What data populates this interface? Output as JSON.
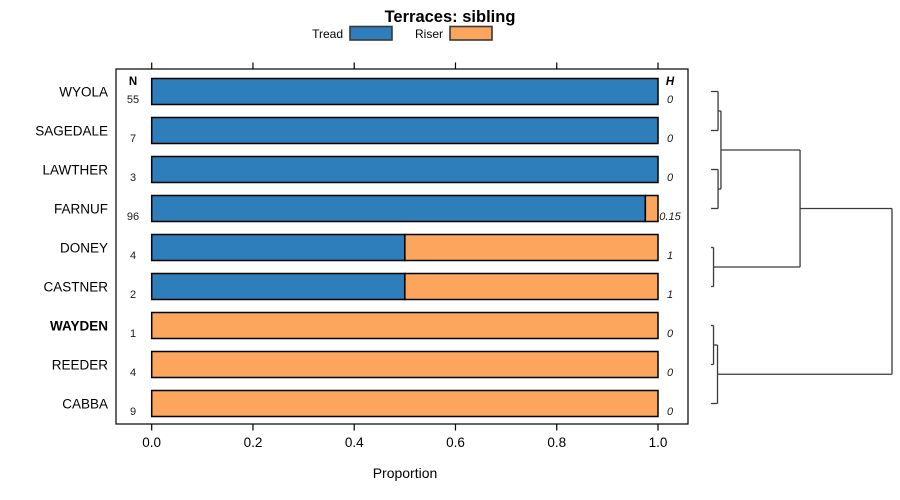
{
  "title": "Terraces: sibling",
  "legend": {
    "items": [
      {
        "label": "Tread",
        "color": "#2E7EBC"
      },
      {
        "label": "Riser",
        "color": "#FCA55D"
      }
    ]
  },
  "columns": {
    "n_header": "N",
    "h_header": "H"
  },
  "chart_data": {
    "type": "bar",
    "orientation": "horizontal-stacked",
    "title": "Terraces: sibling",
    "xlabel": "Proportion",
    "xlim": [
      0,
      1
    ],
    "x_ticks": [
      "0.0",
      "0.2",
      "0.4",
      "0.6",
      "0.8",
      "1.0"
    ],
    "grid": false,
    "legend_position": "top",
    "categories": [
      "WYOLA",
      "SAGEDALE",
      "LAWTHER",
      "FARNUF",
      "DONEY",
      "CASTNER",
      "WAYDEN",
      "REEDER",
      "CABBA"
    ],
    "bold_categories": [
      "WAYDEN"
    ],
    "series": [
      {
        "name": "Tread",
        "color": "#2E7EBC",
        "values": [
          1,
          1,
          1,
          0.975,
          0.5,
          0.5,
          0,
          0,
          0
        ]
      },
      {
        "name": "Riser",
        "color": "#FCA55D",
        "values": [
          0,
          0,
          0,
          0.025,
          0.5,
          0.5,
          1,
          1,
          1
        ]
      }
    ],
    "n_values": [
      55,
      7,
      3,
      96,
      4,
      2,
      1,
      4,
      9
    ],
    "h_values": [
      "0",
      "0",
      "0",
      "0.15",
      "1",
      "1",
      "0",
      "0",
      "0"
    ],
    "dendrogram": {
      "height": 1.0,
      "children": [
        {
          "height": 0.492,
          "children": [
            {
              "height": 0.055,
              "children": [
                {
                  "height": 0.039,
                  "children": [
                    {
                      "leaf": "WYOLA"
                    },
                    {
                      "leaf": "SAGEDALE"
                    }
                  ]
                },
                {
                  "height": 0.039,
                  "children": [
                    {
                      "leaf": "LAWTHER"
                    },
                    {
                      "leaf": "FARNUF"
                    }
                  ]
                }
              ]
            },
            {
              "height": 0.014,
              "children": [
                {
                  "leaf": "DONEY"
                },
                {
                  "leaf": "CASTNER"
                }
              ]
            }
          ]
        },
        {
          "height": 0.036,
          "children": [
            {
              "height": 0.014,
              "children": [
                {
                  "leaf": "WAYDEN"
                },
                {
                  "leaf": "REEDER"
                }
              ]
            },
            {
              "leaf": "CABBA"
            }
          ]
        }
      ]
    }
  }
}
